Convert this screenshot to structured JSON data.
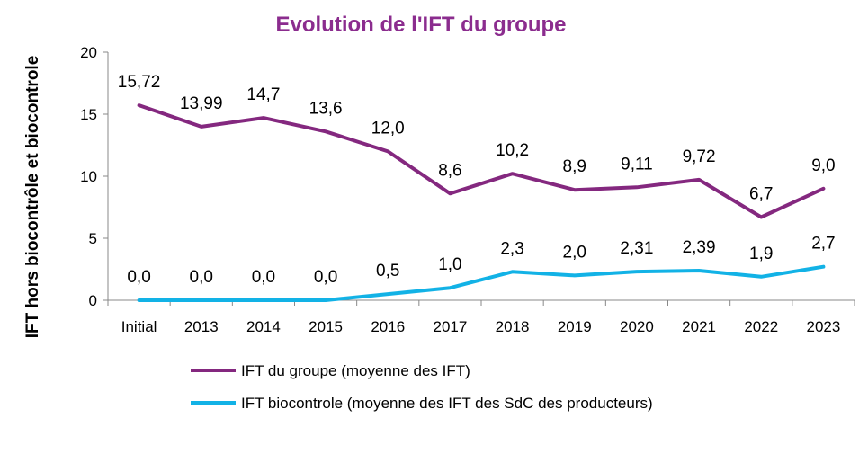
{
  "chart_data": {
    "type": "line",
    "title": "Evolution de l'IFT du groupe",
    "title_color": "#8B2C8E",
    "xlabel": "",
    "ylabel": "IFT  hors biocontrôle et biocontrole",
    "ylim": [
      0,
      20
    ],
    "yticks": [
      "0",
      "5",
      "10",
      "15",
      "20"
    ],
    "grid": false,
    "legend_position": "bottom",
    "categories": [
      "Initial",
      "2013",
      "2014",
      "2015",
      "2016",
      "2017",
      "2018",
      "2019",
      "2020",
      "2021",
      "2022",
      "2023"
    ],
    "series": [
      {
        "name": "IFT du groupe (moyenne des IFT)",
        "color": "#84287F",
        "values": [
          15.72,
          13.99,
          14.7,
          13.6,
          12.0,
          8.6,
          10.2,
          8.9,
          9.11,
          9.72,
          6.7,
          9.0
        ],
        "labels": [
          "15,72",
          "13,99",
          "14,7",
          "13,6",
          "12,0",
          "8,6",
          "10,2",
          "8,9",
          "9,11",
          "9,72",
          "6,7",
          "9,0"
        ]
      },
      {
        "name": "IFT biocontrole (moyenne des IFT des SdC des producteurs)",
        "color": "#12B2E6",
        "values": [
          0.0,
          0.0,
          0.0,
          0.0,
          0.5,
          1.0,
          2.3,
          2.0,
          2.31,
          2.39,
          1.9,
          2.7
        ],
        "labels": [
          "0,0",
          "0,0",
          "0,0",
          "0,0",
          "0,5",
          "1,0",
          "2,3",
          "2,0",
          "2,31",
          "2,39",
          "1,9",
          "2,7"
        ]
      }
    ]
  }
}
